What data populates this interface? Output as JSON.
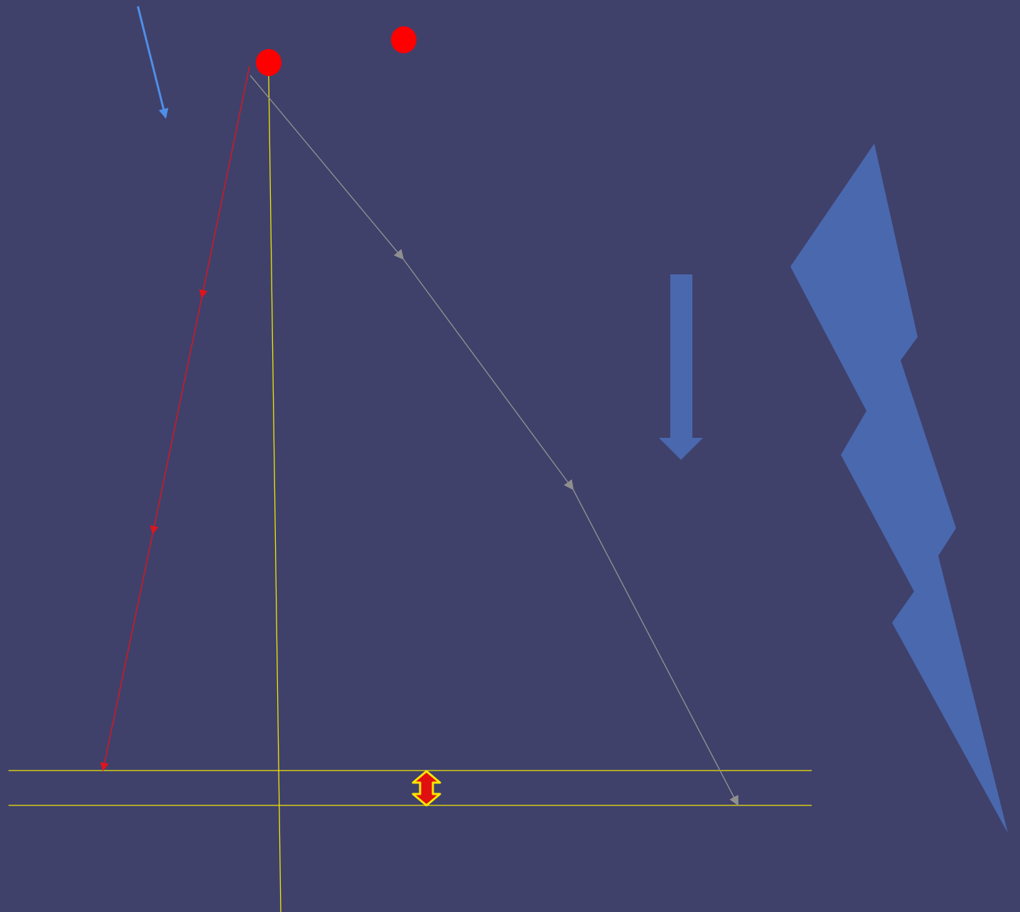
{
  "colors": {
    "background": "#3f416b",
    "ball": "#ff0000",
    "guide_line": "#f2e600",
    "red_path": "#e0141c",
    "gray_path": "#8f8f8f",
    "blue_arrow": "#4f8fe8",
    "block_arrow": "#4a68ae",
    "lightning": "#4a68ae",
    "double_arrow_fill": "#e01010",
    "double_arrow_stroke": "#ffe600"
  },
  "icons": {
    "balls": [
      "ball-icon",
      "ball-icon"
    ],
    "lightning": "lightning-bolt-icon",
    "block_arrow": "down-arrow-icon",
    "double_arrow": "up-down-arrow-icon",
    "thin_arrow": "arrow-icon"
  },
  "labels": {}
}
